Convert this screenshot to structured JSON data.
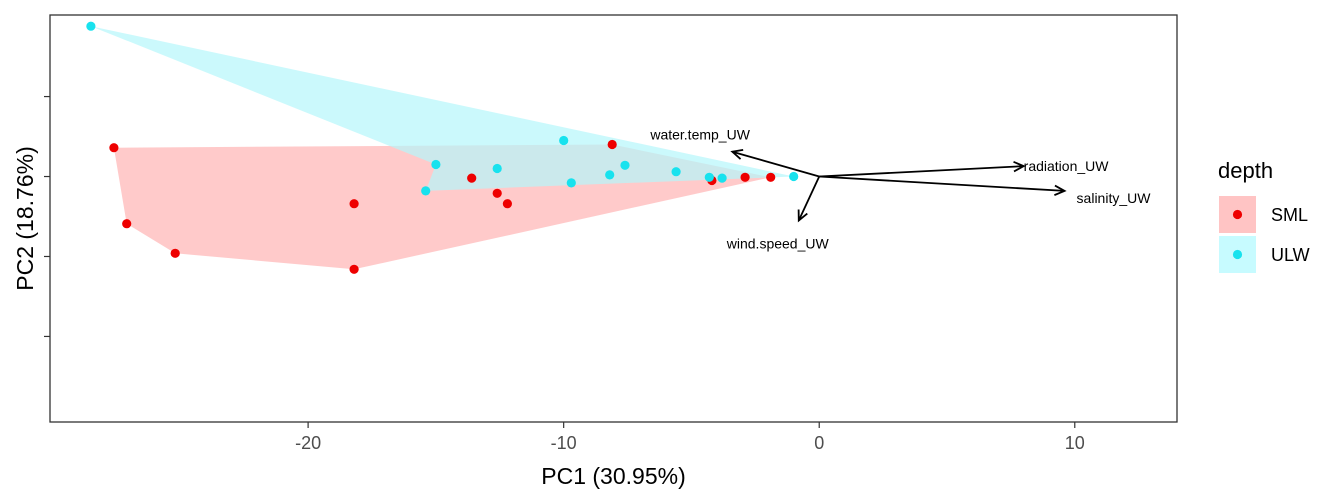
{
  "chart_data": {
    "type": "scatter",
    "xlabel": "PC1 (30.95%)",
    "ylabel": "PC2 (18.76%)",
    "xlim": [
      -30.1,
      14.0
    ],
    "ylim": [
      -3.07,
      2.02
    ],
    "x_ticks": [
      -20,
      -10,
      0,
      10
    ],
    "x_tick_labels": [
      "-20",
      "-10",
      "0",
      "10"
    ],
    "y_ticks": [
      -2,
      -1,
      0,
      1
    ],
    "grid": false,
    "legend": {
      "title": "depth",
      "position": "right",
      "entries": [
        {
          "label": "SML",
          "color": "#ee0000",
          "fill": "#ffc4c4"
        },
        {
          "label": "ULW",
          "color": "#18e2ee",
          "fill": "#c7fbff"
        }
      ]
    },
    "series": [
      {
        "name": "SML",
        "color": "#ee0000",
        "hull_fill": "#ffb3b3",
        "points": [
          {
            "x": -27.6,
            "y": 0.36
          },
          {
            "x": -27.1,
            "y": -0.59
          },
          {
            "x": -25.2,
            "y": -0.96
          },
          {
            "x": -18.2,
            "y": -0.34
          },
          {
            "x": -18.2,
            "y": -1.16
          },
          {
            "x": -13.6,
            "y": -0.02
          },
          {
            "x": -12.6,
            "y": -0.21
          },
          {
            "x": -12.2,
            "y": -0.34
          },
          {
            "x": -8.1,
            "y": 0.4
          },
          {
            "x": -4.2,
            "y": -0.05
          },
          {
            "x": -2.9,
            "y": -0.01
          },
          {
            "x": -1.9,
            "y": -0.01
          }
        ],
        "hull": [
          {
            "x": -27.6,
            "y": 0.36
          },
          {
            "x": -27.1,
            "y": -0.59
          },
          {
            "x": -25.2,
            "y": -0.96
          },
          {
            "x": -18.2,
            "y": -1.16
          },
          {
            "x": -1.9,
            "y": -0.01
          },
          {
            "x": -8.1,
            "y": 0.4
          }
        ]
      },
      {
        "name": "ULW",
        "color": "#18e2ee",
        "hull_fill": "#b5f7fb",
        "points": [
          {
            "x": -28.5,
            "y": 1.88
          },
          {
            "x": -15.4,
            "y": -0.18
          },
          {
            "x": -15.0,
            "y": 0.15
          },
          {
            "x": -12.6,
            "y": 0.1
          },
          {
            "x": -10.0,
            "y": 0.45
          },
          {
            "x": -9.7,
            "y": -0.08
          },
          {
            "x": -8.2,
            "y": 0.02
          },
          {
            "x": -7.6,
            "y": 0.14
          },
          {
            "x": -5.6,
            "y": 0.06
          },
          {
            "x": -4.3,
            "y": -0.01
          },
          {
            "x": -3.8,
            "y": -0.02
          },
          {
            "x": -1.0,
            "y": 0.0
          }
        ],
        "hull": [
          {
            "x": -28.5,
            "y": 1.88
          },
          {
            "x": -1.0,
            "y": 0.0
          },
          {
            "x": -15.4,
            "y": -0.18
          },
          {
            "x": -15.0,
            "y": 0.15
          }
        ]
      }
    ],
    "loadings": [
      {
        "name": "water.temp_UW",
        "x": -3.4,
        "y": 0.31
      },
      {
        "name": "radiation_UW",
        "x": 8.0,
        "y": 0.13
      },
      {
        "name": "salinity_UW",
        "x": 9.6,
        "y": -0.18
      },
      {
        "name": "wind.speed_UW",
        "x": -0.8,
        "y": -0.55
      }
    ],
    "loading_origin": {
      "x": 0,
      "y": 0
    }
  }
}
